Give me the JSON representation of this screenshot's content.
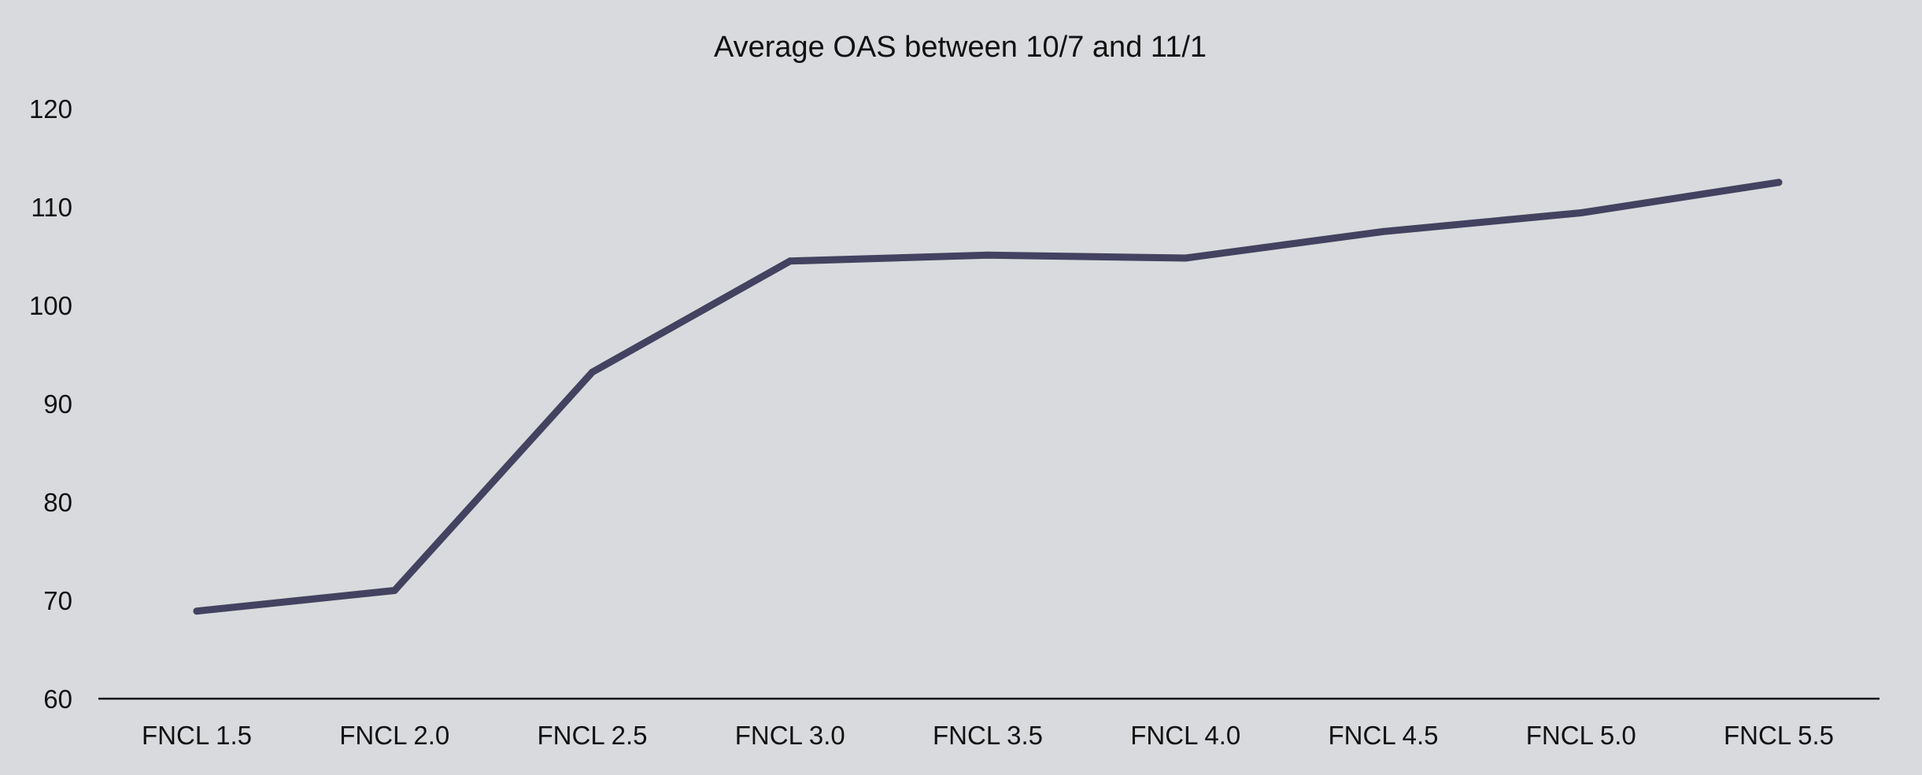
{
  "chart_data": {
    "type": "line",
    "title": "Average OAS between 10/7 and 11/1",
    "xlabel": "",
    "ylabel": "",
    "categories": [
      "FNCL 1.5",
      "FNCL 2.0",
      "FNCL 2.5",
      "FNCL 3.0",
      "FNCL 3.5",
      "FNCL 4.0",
      "FNCL 4.5",
      "FNCL 5.0",
      "FNCL 5.5"
    ],
    "series": [
      {
        "values": [
          68.9,
          71.0,
          93.2,
          104.5,
          105.1,
          104.8,
          107.5,
          109.4,
          112.5
        ],
        "color": "#434260"
      }
    ],
    "y_ticks": [
      "60",
      "70",
      "80",
      "90",
      "100",
      "110",
      "120"
    ],
    "ylim": [
      60,
      120
    ],
    "grid": false,
    "legend": "none",
    "background": "#d9dadd"
  }
}
